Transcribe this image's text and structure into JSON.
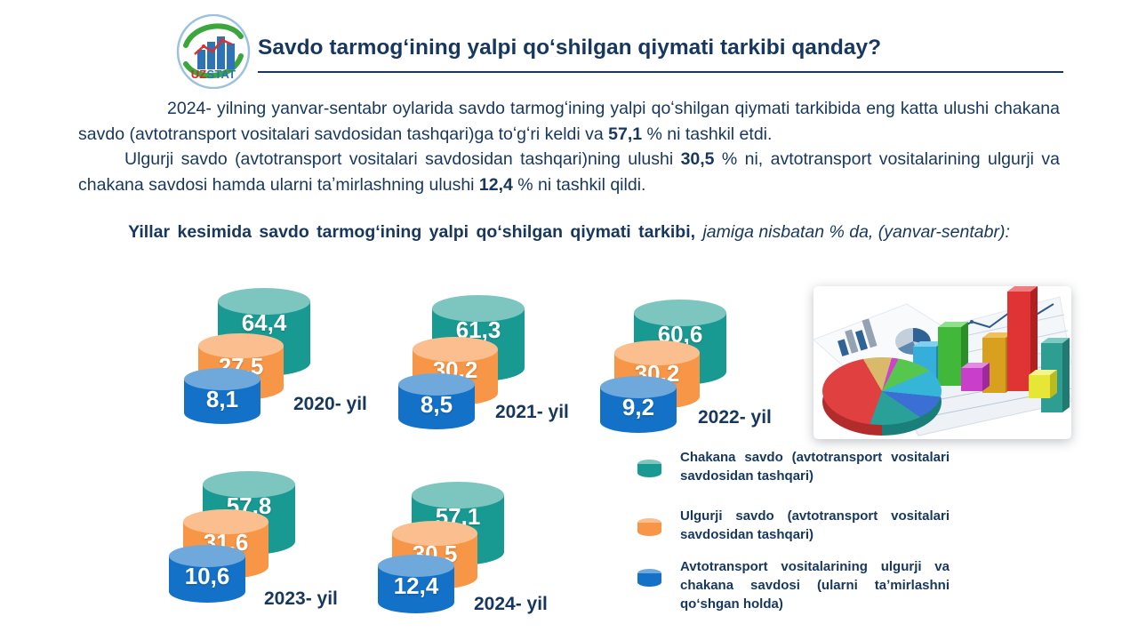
{
  "page": {
    "background": "#FFFFFF",
    "text_color": "#17375E"
  },
  "logo": {
    "uz": "UZ",
    "stat": "STAT"
  },
  "header": {
    "title": "Savdo tarmogʻining yalpi qoʻshilgan qiymati tarkibi qanday?"
  },
  "intro": {
    "p1": {
      "t1": "2024- yilning yanvar-sentabr oylarida savdo tarmogʻining yalpi qoʻshilgan qiymati tarkibida eng katta ulushi chakana savdo (avtotransport vositalari savdosidan tashqari)ga toʻgʻri keldi va ",
      "b1": "57,1",
      "t2": " % ni tashkil etdi."
    },
    "p2": {
      "t1": "Ulgurji savdo (avtotransport vositalari savdosidan tashqari)ning ulushi ",
      "b1": "30,5",
      "t2": " % ni, avtotransport vositalarining ulgurji va chakana savdosi hamda ularni taʼmirlashning ulushi ",
      "b2": "12,4",
      "t3": " % ni tashkil qildi."
    }
  },
  "subtitle": {
    "bold": "Yillar kesimida savdo tarmogʻining yalpi qoʻshilgan qiymati tarkibi, ",
    "italic": "jamiga nisbatan % da, (yanvar-sentabr):"
  },
  "chart_data": {
    "type": "bar",
    "title": "Yillar kesimida savdo tarmogʻining yalpi qoʻshilgan qiymati tarkibi",
    "unit": "jamiga nisbatan % da (yanvar-sentabr)",
    "series_names": [
      "Chakana savdo (avtotransport vositalari savdosidan tashqari)",
      "Ulgurji savdo (avtotransport vositalari savdosidan tashqari)",
      "Avtotransport vositalarining ulgurji va chakana savdosi (ularni taʼmirlashni qoʻshgan holda)"
    ],
    "groups": [
      {
        "year": "2020- yil",
        "values": [
          64.4,
          27.5,
          8.1
        ],
        "labels": [
          "64,4",
          "27,5",
          "8,1"
        ]
      },
      {
        "year": "2021- yil",
        "values": [
          61.3,
          30.2,
          8.5
        ],
        "labels": [
          "61,3",
          "30,2",
          "8,5"
        ]
      },
      {
        "year": "2022- yil",
        "values": [
          60.6,
          30.2,
          9.2
        ],
        "labels": [
          "60,6",
          "30,2",
          "9,2"
        ]
      },
      {
        "year": "2023- yil",
        "values": [
          57.8,
          31.6,
          10.6
        ],
        "labels": [
          "57,8",
          "31,6",
          "10,6"
        ]
      },
      {
        "year": "2024- yil",
        "values": [
          57.1,
          30.5,
          12.4
        ],
        "labels": [
          "57,1",
          "30,5",
          "12,4"
        ]
      }
    ]
  },
  "legend": [
    {
      "text": "Chakana savdo (avtotransport vositalari savdosidan tashqari)",
      "color": "#189A93",
      "top_color": "#7CC6BF"
    },
    {
      "text": "Ulgurji savdo (avtotransport vositalari savdosidan tashqari)",
      "color": "#F79646",
      "top_color": "#FBBE8E"
    },
    {
      "text": "Avtotransport vositalarining ulgurji va chakana savdosi (ularni taʼmirlashni qoʻshgan holda)",
      "color": "#1371C8",
      "top_color": "#6FA9DC"
    }
  ]
}
